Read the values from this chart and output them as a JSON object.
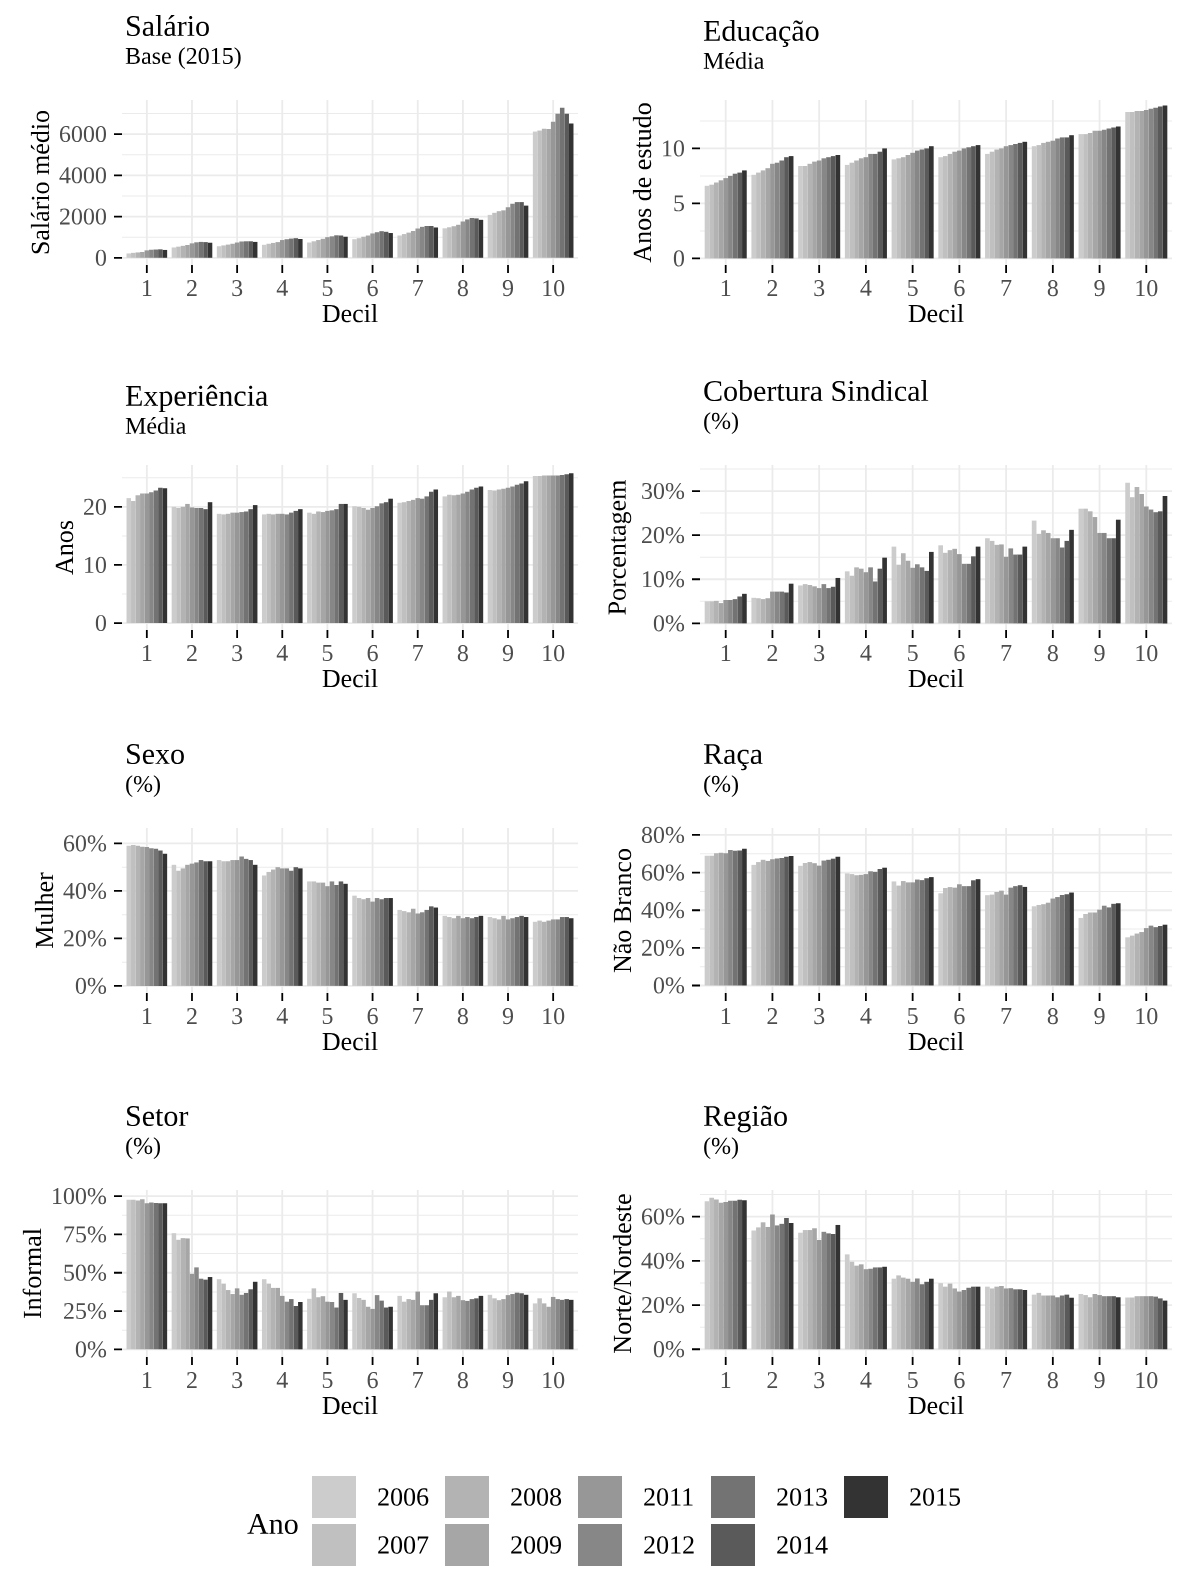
{
  "chart_data": [
    {
      "type": "bar",
      "title": "Salário",
      "subtitle": "Base (2015)",
      "xlabel": "Decil",
      "ylabel": "Salário médio",
      "categories": [
        "1",
        "2",
        "3",
        "4",
        "5",
        "6",
        "7",
        "8",
        "9",
        "10"
      ],
      "ylim": [
        -350,
        7650
      ],
      "yticks": [
        0,
        {
          "value": 1000,
          "label": null
        },
        2000,
        {
          "value": 3000,
          "label": null
        },
        4000,
        {
          "value": 5000,
          "label": null
        },
        6000,
        {
          "value": 7000,
          "label": null
        }
      ],
      "grid": true,
      "legend": "bottom",
      "legend_title": "Ano",
      "series": [
        {
          "name": "2006",
          "color": "#cccccc",
          "values": [
            210,
            500,
            560,
            630,
            740,
            900,
            1080,
            1430,
            2080,
            6120
          ]
        },
        {
          "name": "2007",
          "color": "#c0c0c0",
          "values": [
            240,
            540,
            600,
            680,
            800,
            950,
            1150,
            1480,
            2180,
            6170
          ]
        },
        {
          "name": "2008",
          "color": "#b3b3b3",
          "values": [
            260,
            580,
            640,
            720,
            860,
            1020,
            1220,
            1530,
            2260,
            6260
          ]
        },
        {
          "name": "2009",
          "color": "#a6a6a6",
          "values": [
            280,
            620,
            680,
            760,
            920,
            1080,
            1300,
            1600,
            2300,
            6250
          ]
        },
        {
          "name": "2011",
          "color": "#979797",
          "values": [
            360,
            700,
            740,
            860,
            1000,
            1180,
            1420,
            1760,
            2450,
            6590
          ]
        },
        {
          "name": "2012",
          "color": "#878787",
          "values": [
            390,
            750,
            790,
            900,
            1040,
            1240,
            1500,
            1860,
            2620,
            6980
          ]
        },
        {
          "name": "2013",
          "color": "#737373",
          "values": [
            400,
            770,
            800,
            930,
            1090,
            1290,
            1540,
            1930,
            2700,
            7270
          ]
        },
        {
          "name": "2014",
          "color": "#5a5a5a",
          "values": [
            410,
            760,
            800,
            950,
            1080,
            1260,
            1540,
            1910,
            2700,
            6980
          ]
        },
        {
          "name": "2015",
          "color": "#333333",
          "values": [
            380,
            730,
            770,
            910,
            1020,
            1200,
            1470,
            1840,
            2530,
            6510
          ]
        }
      ]
    },
    {
      "type": "bar",
      "title": "Educação",
      "subtitle": "Média",
      "xlabel": "Decil",
      "ylabel": "Anos de estudo",
      "categories": [
        "1",
        "2",
        "3",
        "4",
        "5",
        "6",
        "7",
        "8",
        "9",
        "10"
      ],
      "ylim": [
        -0.6,
        14.4
      ],
      "yticks": [
        0,
        {
          "value": 2.5,
          "label": null
        },
        5,
        {
          "value": 7.5,
          "label": null
        },
        10,
        {
          "value": 12.5,
          "label": null
        }
      ],
      "grid": true,
      "series": [
        {
          "color": "#cccccc",
          "values": [
            6.6,
            7.6,
            8.4,
            8.5,
            9.0,
            9.2,
            9.5,
            10.2,
            11.3,
            13.3
          ]
        },
        {
          "color": "#c0c0c0",
          "values": [
            6.7,
            7.8,
            8.4,
            8.7,
            9.1,
            9.3,
            9.7,
            10.3,
            11.3,
            13.3
          ]
        },
        {
          "color": "#b3b3b3",
          "values": [
            6.9,
            8.0,
            8.6,
            8.9,
            9.2,
            9.5,
            9.9,
            10.5,
            11.4,
            13.4
          ]
        },
        {
          "color": "#a6a6a6",
          "values": [
            7.1,
            8.2,
            8.8,
            9.1,
            9.4,
            9.7,
            10.0,
            10.6,
            11.6,
            13.4
          ]
        },
        {
          "color": "#979797",
          "values": [
            7.3,
            8.6,
            8.9,
            9.2,
            9.6,
            9.8,
            10.2,
            10.7,
            11.6,
            13.5
          ]
        },
        {
          "color": "#878787",
          "values": [
            7.5,
            8.7,
            9.1,
            9.5,
            9.8,
            10.0,
            10.3,
            10.9,
            11.7,
            13.6
          ]
        },
        {
          "color": "#737373",
          "values": [
            7.7,
            8.9,
            9.2,
            9.5,
            9.9,
            10.1,
            10.4,
            11.0,
            11.8,
            13.7
          ]
        },
        {
          "color": "#5a5a5a",
          "values": [
            7.8,
            9.2,
            9.3,
            9.7,
            10.0,
            10.2,
            10.5,
            11.0,
            11.9,
            13.8
          ]
        },
        {
          "color": "#333333",
          "values": [
            8.0,
            9.3,
            9.4,
            10.0,
            10.2,
            10.3,
            10.6,
            11.2,
            12.0,
            13.9
          ]
        }
      ]
    },
    {
      "type": "bar",
      "title": "Experiência",
      "subtitle": "Média",
      "xlabel": "Decil",
      "ylabel": "Anos",
      "categories": [
        "1",
        "2",
        "3",
        "4",
        "5",
        "6",
        "7",
        "8",
        "9",
        "10"
      ],
      "ylim": [
        -1.2,
        27.2
      ],
      "yticks": [
        0,
        {
          "value": 5,
          "label": null
        },
        10,
        {
          "value": 15,
          "label": null
        },
        20,
        {
          "value": 25,
          "label": null
        }
      ],
      "grid": true,
      "series": [
        {
          "color": "#cccccc",
          "values": [
            21.5,
            20.0,
            18.8,
            18.7,
            19.0,
            20.1,
            20.7,
            21.8,
            22.9,
            25.3
          ]
        },
        {
          "color": "#c0c0c0",
          "values": [
            21.0,
            19.8,
            18.7,
            18.8,
            18.8,
            20.0,
            20.8,
            22.1,
            22.8,
            25.3
          ]
        },
        {
          "color": "#b3b3b3",
          "values": [
            22.0,
            20.0,
            18.8,
            18.7,
            19.2,
            19.8,
            21.0,
            22.0,
            23.0,
            25.4
          ]
        },
        {
          "color": "#a6a6a6",
          "values": [
            22.3,
            20.5,
            19.0,
            18.8,
            19.1,
            19.5,
            21.2,
            22.1,
            23.1,
            25.4
          ]
        },
        {
          "color": "#979797",
          "values": [
            22.3,
            19.9,
            19.0,
            18.8,
            19.3,
            19.8,
            21.5,
            22.3,
            23.3,
            25.4
          ]
        },
        {
          "color": "#878787",
          "values": [
            22.5,
            19.8,
            19.1,
            18.7,
            19.4,
            20.1,
            21.4,
            22.6,
            23.5,
            25.4
          ]
        },
        {
          "color": "#737373",
          "values": [
            22.8,
            19.8,
            19.2,
            19.0,
            19.6,
            20.6,
            21.8,
            23.0,
            23.8,
            25.5
          ]
        },
        {
          "color": "#5a5a5a",
          "values": [
            23.3,
            19.6,
            19.6,
            19.3,
            20.5,
            20.8,
            22.6,
            23.3,
            24.0,
            25.6
          ]
        },
        {
          "color": "#333333",
          "values": [
            23.2,
            20.8,
            20.3,
            19.6,
            20.5,
            21.4,
            23.0,
            23.5,
            24.4,
            25.8
          ]
        }
      ]
    },
    {
      "type": "bar",
      "title": "Cobertura Sindical",
      "subtitle": "(%)",
      "xlabel": "Decil",
      "ylabel": "Porcentagem",
      "categories": [
        "1",
        "2",
        "3",
        "4",
        "5",
        "6",
        "7",
        "8",
        "9",
        "10"
      ],
      "ylim": [
        -1.5,
        35.9
      ],
      "yticks": [
        {
          "value": 0,
          "label": "0%"
        },
        {
          "value": 5,
          "label": null
        },
        {
          "value": 10,
          "label": "10%"
        },
        {
          "value": 15,
          "label": null
        },
        {
          "value": 20,
          "label": "20%"
        },
        {
          "value": 25,
          "label": null
        },
        {
          "value": 30,
          "label": "30%"
        },
        {
          "value": 35,
          "label": null
        }
      ],
      "grid": true,
      "series": [
        {
          "color": "#cccccc",
          "values": [
            5.0,
            5.8,
            8.6,
            11.8,
            17.4,
            17.7,
            19.3,
            23.3,
            26.0,
            31.9
          ]
        },
        {
          "color": "#c0c0c0",
          "values": [
            5.0,
            5.7,
            8.9,
            10.8,
            13.3,
            16.0,
            18.7,
            20.3,
            26.0,
            28.6
          ]
        },
        {
          "color": "#b3b3b3",
          "values": [
            5.1,
            5.5,
            8.7,
            12.7,
            15.9,
            16.6,
            17.8,
            21.1,
            25.4,
            30.9
          ]
        },
        {
          "color": "#a6a6a6",
          "values": [
            4.6,
            5.7,
            8.4,
            12.4,
            14.2,
            16.9,
            17.9,
            20.5,
            24.1,
            29.3
          ]
        },
        {
          "color": "#979797",
          "values": [
            5.3,
            7.2,
            8.0,
            11.6,
            12.6,
            15.7,
            15.1,
            19.3,
            20.5,
            26.5
          ]
        },
        {
          "color": "#878787",
          "values": [
            5.3,
            7.2,
            8.9,
            12.7,
            13.4,
            13.5,
            17.0,
            19.3,
            20.5,
            25.8
          ]
        },
        {
          "color": "#737373",
          "values": [
            5.5,
            7.2,
            8.0,
            9.5,
            12.7,
            13.5,
            15.6,
            17.2,
            19.3,
            25.2
          ]
        },
        {
          "color": "#5a5a5a",
          "values": [
            6.1,
            7.0,
            8.3,
            12.4,
            11.9,
            15.2,
            15.6,
            18.7,
            19.3,
            25.4
          ]
        },
        {
          "color": "#333333",
          "values": [
            6.7,
            9.0,
            10.3,
            14.9,
            16.2,
            17.4,
            17.4,
            21.2,
            23.5,
            28.9
          ]
        }
      ]
    },
    {
      "type": "bar",
      "title": "Sexo",
      "subtitle": "(%)",
      "xlabel": "Decil",
      "ylabel": "Mulher",
      "categories": [
        "1",
        "2",
        "3",
        "4",
        "5",
        "6",
        "7",
        "8",
        "9",
        "10"
      ],
      "ylim": [
        -3,
        66.5
      ],
      "yticks": [
        {
          "value": 0,
          "label": "0%"
        },
        {
          "value": 10,
          "label": null
        },
        {
          "value": 20,
          "label": "20%"
        },
        {
          "value": 30,
          "label": null
        },
        {
          "value": 40,
          "label": "40%"
        },
        {
          "value": 50,
          "label": null
        },
        {
          "value": 60,
          "label": "60%"
        }
      ],
      "grid": true,
      "series": [
        {
          "color": "#cccccc",
          "values": [
            59.0,
            51.0,
            53.0,
            46.5,
            44.0,
            38.0,
            32.0,
            29.5,
            29.0,
            27.0
          ]
        },
        {
          "color": "#c0c0c0",
          "values": [
            59.3,
            48.5,
            52.5,
            48.0,
            44.0,
            37.0,
            31.5,
            29.0,
            28.5,
            27.5
          ]
        },
        {
          "color": "#b3b3b3",
          "values": [
            59.0,
            49.5,
            52.5,
            49.0,
            43.5,
            36.5,
            31.0,
            28.5,
            28.0,
            27.0
          ]
        },
        {
          "color": "#a6a6a6",
          "values": [
            58.6,
            51.0,
            53.0,
            50.0,
            43.5,
            37.0,
            32.5,
            29.5,
            29.5,
            27.5
          ]
        },
        {
          "color": "#979797",
          "values": [
            58.5,
            51.5,
            53.0,
            49.5,
            42.0,
            35.5,
            30.5,
            28.5,
            28.0,
            28.0
          ]
        },
        {
          "color": "#878787",
          "values": [
            58.0,
            52.0,
            54.5,
            49.5,
            44.0,
            37.0,
            31.0,
            29.0,
            28.5,
            28.0
          ]
        },
        {
          "color": "#737373",
          "values": [
            57.8,
            53.0,
            53.5,
            48.5,
            42.5,
            36.5,
            32.0,
            28.5,
            29.0,
            29.0
          ]
        },
        {
          "color": "#5a5a5a",
          "values": [
            57.0,
            52.5,
            53.0,
            50.0,
            44.0,
            37.0,
            33.5,
            29.0,
            29.5,
            29.0
          ]
        },
        {
          "color": "#333333",
          "values": [
            55.7,
            52.5,
            51.0,
            49.5,
            43.0,
            37.0,
            33.0,
            29.5,
            29.0,
            28.5
          ]
        }
      ]
    },
    {
      "type": "bar",
      "title": "Raça",
      "subtitle": "(%)",
      "xlabel": "Decil",
      "ylabel": "Não Branco",
      "categories": [
        "1",
        "2",
        "3",
        "4",
        "5",
        "6",
        "7",
        "8",
        "9",
        "10"
      ],
      "ylim": [
        -4,
        83.7
      ],
      "yticks": [
        {
          "value": 0,
          "label": "0%"
        },
        {
          "value": 10,
          "label": null
        },
        {
          "value": 20,
          "label": "20%"
        },
        {
          "value": 30,
          "label": null
        },
        {
          "value": 40,
          "label": "40%"
        },
        {
          "value": 50,
          "label": null
        },
        {
          "value": 60,
          "label": "60%"
        },
        {
          "value": 70,
          "label": null
        },
        {
          "value": 80,
          "label": "80%"
        }
      ],
      "grid": true,
      "series": [
        {
          "color": "#cccccc",
          "values": [
            69.0,
            64.1,
            63.6,
            59.6,
            55.3,
            49.0,
            48.0,
            42.1,
            35.9,
            25.6
          ]
        },
        {
          "color": "#c0c0c0",
          "values": [
            69.0,
            65.6,
            65.1,
            59.2,
            53.1,
            51.8,
            48.3,
            42.8,
            38.0,
            26.5
          ]
        },
        {
          "color": "#b3b3b3",
          "values": [
            70.3,
            66.8,
            65.6,
            58.6,
            55.5,
            52.3,
            49.7,
            43.2,
            38.8,
            27.6
          ]
        },
        {
          "color": "#a6a6a6",
          "values": [
            70.5,
            66.2,
            65.0,
            58.8,
            54.8,
            52.0,
            50.4,
            44.0,
            38.8,
            28.4
          ]
        },
        {
          "color": "#979797",
          "values": [
            70.3,
            67.1,
            63.7,
            59.2,
            54.8,
            53.8,
            48.3,
            46.2,
            40.3,
            30.5
          ]
        },
        {
          "color": "#878787",
          "values": [
            72.0,
            67.5,
            66.4,
            60.7,
            56.3,
            52.8,
            52.0,
            47.0,
            42.4,
            31.8
          ]
        },
        {
          "color": "#737373",
          "values": [
            71.6,
            67.8,
            66.8,
            60.4,
            56.0,
            52.8,
            52.8,
            48.1,
            41.5,
            31.0
          ]
        },
        {
          "color": "#5a5a5a",
          "values": [
            71.8,
            68.4,
            67.4,
            61.9,
            57.0,
            55.9,
            53.3,
            48.5,
            43.4,
            31.6
          ]
        },
        {
          "color": "#333333",
          "values": [
            72.7,
            68.8,
            68.4,
            62.6,
            57.6,
            56.5,
            52.4,
            49.4,
            43.7,
            32.3
          ]
        }
      ]
    },
    {
      "type": "bar",
      "title": "Setor",
      "subtitle": "(%)",
      "xlabel": "Decil",
      "ylabel": "Informal",
      "categories": [
        "1",
        "2",
        "3",
        "4",
        "5",
        "6",
        "7",
        "8",
        "9",
        "10"
      ],
      "ylim": [
        -5,
        104
      ],
      "yticks": [
        {
          "value": 0,
          "label": "0%"
        },
        {
          "value": 12.5,
          "label": null
        },
        {
          "value": 25,
          "label": "25%"
        },
        {
          "value": 37.5,
          "label": null
        },
        {
          "value": 50,
          "label": "50%"
        },
        {
          "value": 62.5,
          "label": null
        },
        {
          "value": 75,
          "label": "75%"
        },
        {
          "value": 87.5,
          "label": null
        },
        {
          "value": 100,
          "label": "100%"
        }
      ],
      "grid": true,
      "series": [
        {
          "color": "#cccccc",
          "values": [
            97.6,
            75.8,
            45.8,
            45.8,
            33.0,
            36.6,
            34.9,
            34.0,
            35.6,
            30.0
          ]
        },
        {
          "color": "#c0c0c0",
          "values": [
            97.6,
            71.5,
            42.9,
            42.9,
            39.8,
            33.5,
            31.1,
            37.7,
            33.3,
            33.3
          ]
        },
        {
          "color": "#b3b3b3",
          "values": [
            97.2,
            72.6,
            38.7,
            40.1,
            34.0,
            32.3,
            32.8,
            34.0,
            32.1,
            30.0
          ]
        },
        {
          "color": "#a6a6a6",
          "values": [
            98.0,
            72.4,
            36.1,
            40.1,
            34.7,
            27.8,
            32.3,
            34.9,
            32.8,
            27.8
          ]
        },
        {
          "color": "#979797",
          "values": [
            95.3,
            49.3,
            39.8,
            34.9,
            31.1,
            26.4,
            37.7,
            32.1,
            35.4,
            34.2
          ]
        },
        {
          "color": "#878787",
          "values": [
            95.8,
            53.5,
            35.6,
            31.1,
            30.9,
            35.4,
            28.8,
            31.6,
            36.1,
            32.8
          ]
        },
        {
          "color": "#737373",
          "values": [
            95.5,
            46.1,
            36.8,
            32.8,
            27.3,
            31.8,
            28.8,
            32.8,
            37.0,
            32.3
          ]
        },
        {
          "color": "#5a5a5a",
          "values": [
            95.3,
            45.5,
            39.2,
            28.3,
            36.8,
            27.3,
            32.3,
            33.3,
            36.6,
            32.8
          ]
        },
        {
          "color": "#333333",
          "values": [
            95.3,
            47.2,
            44.1,
            30.9,
            32.3,
            27.8,
            36.6,
            34.9,
            35.6,
            32.3
          ]
        }
      ]
    },
    {
      "type": "bar",
      "title": "Região",
      "subtitle": "(%)",
      "xlabel": "Decil",
      "ylabel": "Norte/Nordeste",
      "categories": [
        "1",
        "2",
        "3",
        "4",
        "5",
        "6",
        "7",
        "8",
        "9",
        "10"
      ],
      "ylim": [
        -3.5,
        72
      ],
      "yticks": [
        {
          "value": 0,
          "label": "0%"
        },
        {
          "value": 10,
          "label": null
        },
        {
          "value": 20,
          "label": "20%"
        },
        {
          "value": 30,
          "label": null
        },
        {
          "value": 40,
          "label": "40%"
        },
        {
          "value": 50,
          "label": null
        },
        {
          "value": 60,
          "label": "60%"
        },
        {
          "value": 70,
          "label": null
        }
      ],
      "grid": true,
      "series": [
        {
          "color": "#cccccc",
          "values": [
            66.9,
            53.7,
            52.7,
            42.9,
            31.9,
            29.9,
            28.3,
            24.7,
            25.0,
            23.4
          ]
        },
        {
          "color": "#c0c0c0",
          "values": [
            68.5,
            55.1,
            53.9,
            39.6,
            33.4,
            28.3,
            27.5,
            25.5,
            24.5,
            23.4
          ]
        },
        {
          "color": "#b3b3b3",
          "values": [
            67.7,
            57.4,
            53.9,
            37.8,
            32.4,
            29.7,
            28.3,
            24.3,
            23.5,
            24.0
          ]
        },
        {
          "color": "#a6a6a6",
          "values": [
            66.2,
            55.3,
            54.7,
            38.4,
            31.9,
            27.5,
            28.6,
            24.3,
            25.0,
            24.0
          ]
        },
        {
          "color": "#979797",
          "values": [
            66.6,
            60.9,
            49.4,
            36.2,
            30.5,
            26.1,
            27.5,
            24.3,
            24.5,
            24.0
          ]
        },
        {
          "color": "#878787",
          "values": [
            67.1,
            56.0,
            53.1,
            36.4,
            32.0,
            26.8,
            27.6,
            23.5,
            24.0,
            24.0
          ]
        },
        {
          "color": "#737373",
          "values": [
            67.1,
            56.7,
            52.4,
            37.0,
            29.4,
            27.8,
            27.1,
            24.3,
            24.0,
            23.8
          ]
        },
        {
          "color": "#5a5a5a",
          "values": [
            67.6,
            59.3,
            52.1,
            37.0,
            30.5,
            28.3,
            27.1,
            24.7,
            24.0,
            23.0
          ]
        },
        {
          "color": "#333333",
          "values": [
            67.4,
            57.1,
            56.2,
            37.3,
            31.9,
            28.3,
            26.8,
            23.3,
            23.5,
            22.0
          ]
        }
      ]
    }
  ]
}
